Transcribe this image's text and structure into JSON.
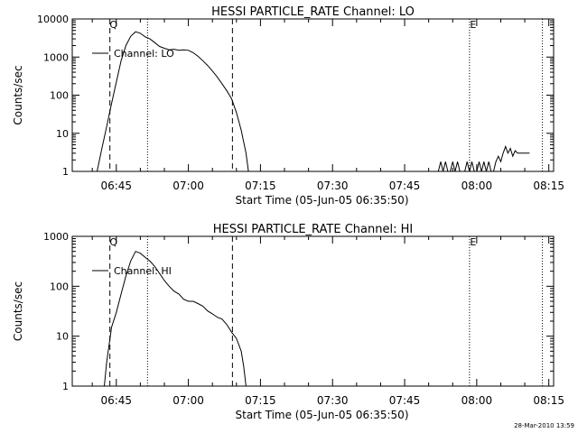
{
  "footer_timestamp": "28-Mar-2010 13:59",
  "chart_data": [
    {
      "type": "line",
      "title": "HESSI PARTICLE_RATE Channel: LO",
      "xlabel": "Start Time (05-Jun-05 06:35:50)",
      "ylabel": "Counts/sec",
      "yscale": "log",
      "ylim": [
        1,
        10000
      ],
      "xlim": [
        "06:35:50",
        "08:16"
      ],
      "x_ticks": [
        "06:45",
        "07:00",
        "07:15",
        "07:30",
        "07:45",
        "08:00",
        "08:15"
      ],
      "y_ticks": [
        "1",
        "10",
        "100",
        "1000",
        "10000"
      ],
      "legend": {
        "position": "top-left",
        "label": "Channel: LO"
      },
      "markers": [
        {
          "label": "Q",
          "time": "06:43:40",
          "style": "dashed"
        },
        {
          "label": "",
          "time": "06:51:30",
          "style": "dotted"
        },
        {
          "label": "",
          "time": "07:09:10",
          "style": "dashed"
        },
        {
          "label": "E",
          "time": "07:58:30",
          "style": "dotted"
        },
        {
          "label": "",
          "time": "08:13:40",
          "style": "dotted"
        }
      ],
      "series": [
        {
          "x": [
            "06:41:00",
            "06:42:00",
            "06:43:00",
            "06:44:00",
            "06:45:00",
            "06:46:00",
            "06:47:00",
            "06:48:00",
            "06:49:00",
            "06:50:00",
            "06:51:00",
            "06:52:00",
            "06:53:00",
            "06:54:00",
            "06:55:00",
            "06:56:00",
            "06:57:00",
            "06:58:00",
            "06:59:00",
            "07:00:00",
            "07:01:00",
            "07:02:00",
            "07:03:00",
            "07:04:00",
            "07:05:00",
            "07:06:00",
            "07:07:00",
            "07:08:00",
            "07:09:00",
            "07:10:00",
            "07:11:00",
            "07:12:00",
            "07:12:30"
          ],
          "values": [
            1,
            4,
            15,
            60,
            220,
            800,
            2000,
            3500,
            4600,
            4200,
            3400,
            3000,
            2400,
            1900,
            1700,
            1550,
            1600,
            1500,
            1550,
            1500,
            1300,
            1050,
            800,
            600,
            430,
            300,
            200,
            130,
            80,
            35,
            12,
            3,
            1
          ]
        },
        {
          "x": [
            "07:52:00",
            "07:52:30",
            "07:53:00",
            "07:53:30",
            "07:54:00",
            "07:54:30",
            "07:55:00",
            "07:55:30",
            "07:56:00",
            "07:56:30",
            "07:57:00",
            "07:57:30",
            "07:58:00",
            "07:58:30",
            "07:59:00",
            "07:59:30",
            "08:00:00",
            "08:00:30",
            "08:01:00",
            "08:01:30",
            "08:02:00",
            "08:02:30",
            "08:03:00",
            "08:03:30",
            "08:04:00",
            "08:04:30",
            "08:05:00",
            "08:05:30",
            "08:06:00",
            "08:06:30",
            "08:07:00",
            "08:07:30",
            "08:08:00",
            "08:08:30",
            "08:09:00",
            "08:10:00",
            "08:11:00"
          ],
          "values": [
            1,
            1.8,
            1,
            1.8,
            1,
            1,
            1.8,
            1,
            1.8,
            1,
            1,
            1,
            1.8,
            1,
            1.8,
            1,
            1,
            1.8,
            1,
            1.8,
            1,
            1.8,
            1,
            1,
            1.8,
            2.5,
            1.8,
            3,
            4.5,
            3,
            4,
            2.5,
            3.5,
            3,
            3,
            3,
            3
          ]
        }
      ]
    },
    {
      "type": "line",
      "title": "HESSI PARTICLE_RATE Channel: HI",
      "xlabel": "Start Time (05-Jun-05 06:35:50)",
      "ylabel": "Counts/sec",
      "yscale": "log",
      "ylim": [
        1,
        1000
      ],
      "xlim": [
        "06:35:50",
        "08:16"
      ],
      "x_ticks": [
        "06:45",
        "07:00",
        "07:15",
        "07:30",
        "07:45",
        "08:00",
        "08:15"
      ],
      "y_ticks": [
        "1",
        "10",
        "100",
        "1000"
      ],
      "legend": {
        "position": "top-left",
        "label": "Channel: HI"
      },
      "markers": [
        {
          "label": "Q",
          "time": "06:43:40",
          "style": "dashed"
        },
        {
          "label": "",
          "time": "06:51:30",
          "style": "dotted"
        },
        {
          "label": "",
          "time": "07:09:10",
          "style": "dashed"
        },
        {
          "label": "E",
          "time": "07:58:30",
          "style": "dotted"
        },
        {
          "label": "",
          "time": "08:13:40",
          "style": "dotted"
        }
      ],
      "series": [
        {
          "x": [
            "06:42:30",
            "06:43:00",
            "06:44:00",
            "06:45:00",
            "06:46:00",
            "06:47:00",
            "06:48:00",
            "06:49:00",
            "06:50:00",
            "06:51:00",
            "06:52:00",
            "06:53:00",
            "06:54:00",
            "06:55:00",
            "06:56:00",
            "06:57:00",
            "06:58:00",
            "06:59:00",
            "07:00:00",
            "07:01:00",
            "07:02:00",
            "07:03:00",
            "07:04:00",
            "07:05:00",
            "07:06:00",
            "07:07:00",
            "07:08:00",
            "07:09:00",
            "07:10:00",
            "07:11:00",
            "07:11:30",
            "07:12:00"
          ],
          "values": [
            1,
            3,
            15,
            30,
            70,
            160,
            320,
            500,
            460,
            380,
            320,
            250,
            180,
            130,
            100,
            80,
            70,
            55,
            50,
            50,
            45,
            40,
            32,
            28,
            24,
            22,
            17,
            12,
            9,
            5,
            2.5,
            1
          ]
        }
      ]
    }
  ]
}
